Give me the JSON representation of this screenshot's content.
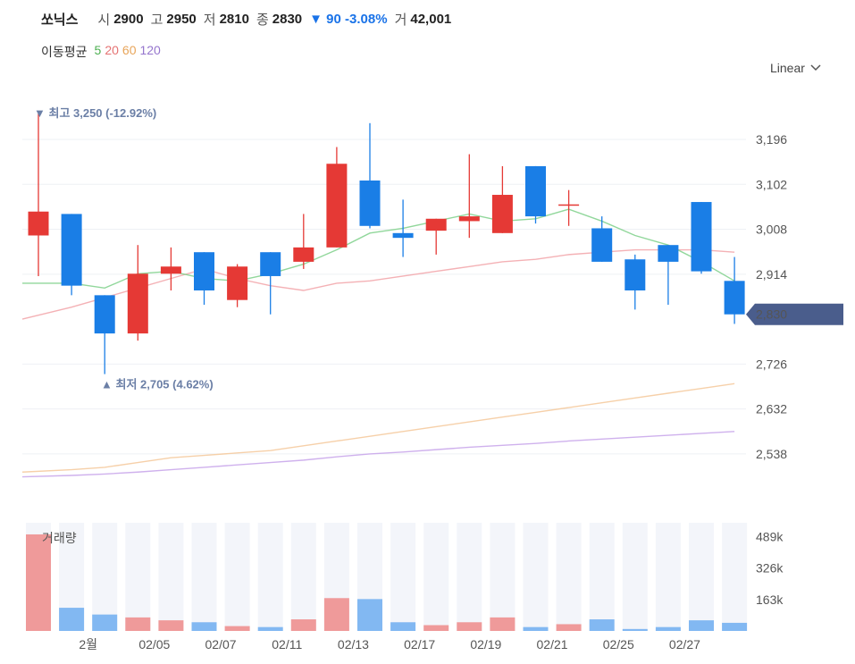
{
  "header": {
    "name": "쏘닉스",
    "open_label": "시",
    "open": "2900",
    "high_label": "고",
    "high": "2950",
    "low_label": "저",
    "low": "2810",
    "close_label": "종",
    "close": "2830",
    "change": "▼ 90 -3.08%",
    "volume_label": "거",
    "volume": "42,001"
  },
  "ma_legend": {
    "title": "이동평균",
    "items": [
      {
        "label": "5",
        "color": "#4caf50"
      },
      {
        "label": "20",
        "color": "#e57373"
      },
      {
        "label": "60",
        "color": "#e8a55a"
      },
      {
        "label": "120",
        "color": "#9575cd"
      }
    ]
  },
  "scale_selector": {
    "label": "Linear",
    "icon": "chevron-down-icon"
  },
  "chart_data": {
    "type": "candlestick",
    "up_color": "#e53935",
    "down_color": "#1a7ee6",
    "price_axis": {
      "ticks": [
        3196,
        3102,
        3008,
        2914,
        2726,
        2632,
        2538
      ],
      "tick_labels": [
        "3,196",
        "3,102",
        "3,008",
        "2,914",
        "2,726",
        "2,632",
        "2,538"
      ],
      "ylim": [
        2450,
        3310
      ]
    },
    "current_price": {
      "value": 2830,
      "label": "2,830"
    },
    "annotations": {
      "high": {
        "text": "▼ 최고 3,250 (-12.92%)",
        "value": 3250
      },
      "low": {
        "text": "▲ 최저 2,705 (4.62%)",
        "value": 2705
      }
    },
    "x_labels": [
      "2월",
      "02/05",
      "02/07",
      "02/11",
      "02/13",
      "02/17",
      "02/19",
      "02/21",
      "02/25",
      "02/27"
    ],
    "x_label_index": [
      2,
      4,
      6,
      8,
      10,
      12,
      14,
      16,
      18,
      20
    ],
    "candles": [
      {
        "o": 2995,
        "h": 3250,
        "l": 2910,
        "c": 3045
      },
      {
        "o": 3040,
        "h": 3040,
        "l": 2870,
        "c": 2890
      },
      {
        "o": 2870,
        "h": 2870,
        "l": 2705,
        "c": 2790
      },
      {
        "o": 2790,
        "h": 2975,
        "l": 2775,
        "c": 2915
      },
      {
        "o": 2915,
        "h": 2970,
        "l": 2880,
        "c": 2930
      },
      {
        "o": 2960,
        "h": 2960,
        "l": 2850,
        "c": 2880
      },
      {
        "o": 2860,
        "h": 2935,
        "l": 2845,
        "c": 2930
      },
      {
        "o": 2960,
        "h": 2960,
        "l": 2830,
        "c": 2910
      },
      {
        "o": 2940,
        "h": 3040,
        "l": 2925,
        "c": 2970
      },
      {
        "o": 2970,
        "h": 3180,
        "l": 2970,
        "c": 3145
      },
      {
        "o": 3110,
        "h": 3230,
        "l": 3010,
        "c": 3015
      },
      {
        "o": 3000,
        "h": 3070,
        "l": 2950,
        "c": 2990
      },
      {
        "o": 3005,
        "h": 3030,
        "l": 2955,
        "c": 3030
      },
      {
        "o": 3025,
        "h": 3165,
        "l": 2990,
        "c": 3035
      },
      {
        "o": 3000,
        "h": 3140,
        "l": 3000,
        "c": 3080
      },
      {
        "o": 3140,
        "h": 3140,
        "l": 3020,
        "c": 3035
      },
      {
        "o": 3060,
        "h": 3090,
        "l": 3015,
        "c": 3060
      },
      {
        "o": 3010,
        "h": 3035,
        "l": 2940,
        "c": 2940
      },
      {
        "o": 2945,
        "h": 2955,
        "l": 2840,
        "c": 2880
      },
      {
        "o": 2975,
        "h": 2975,
        "l": 2850,
        "c": 2940
      },
      {
        "o": 3065,
        "h": 3065,
        "l": 2915,
        "c": 2920
      },
      {
        "o": 2900,
        "h": 2950,
        "l": 2810,
        "c": 2830
      }
    ],
    "ma5": [
      2895,
      2895,
      2885,
      2915,
      2920,
      2905,
      2900,
      2915,
      2935,
      2965,
      3000,
      3010,
      3025,
      3040,
      3025,
      3030,
      3050,
      3025,
      2995,
      2975,
      2940,
      2900
    ],
    "ma20": [
      2820,
      2845,
      2865,
      2885,
      2905,
      2925,
      2905,
      2890,
      2880,
      2895,
      2900,
      2910,
      2920,
      2930,
      2940,
      2945,
      2955,
      2960,
      2965,
      2965,
      2965,
      2960
    ],
    "ma60": [
      2500,
      2505,
      2510,
      2520,
      2530,
      2535,
      2540,
      2545,
      2555,
      2565,
      2575,
      2585,
      2595,
      2605,
      2615,
      2625,
      2635,
      2645,
      2655,
      2665,
      2675,
      2685
    ],
    "ma120": [
      2490,
      2493,
      2496,
      2500,
      2505,
      2510,
      2515,
      2520,
      2525,
      2532,
      2538,
      2542,
      2547,
      2552,
      2556,
      2560,
      2565,
      2569,
      2573,
      2577,
      2581,
      2585
    ],
    "volume": {
      "title": "거래량",
      "ticks": [
        "489k",
        "326k",
        "163k"
      ],
      "tick_values": [
        489,
        326,
        163
      ],
      "max": 560,
      "values": [
        500,
        120,
        85,
        70,
        55,
        45,
        25,
        20,
        60,
        170,
        165,
        45,
        30,
        45,
        70,
        20,
        35,
        60,
        10,
        20,
        55,
        42
      ]
    }
  }
}
